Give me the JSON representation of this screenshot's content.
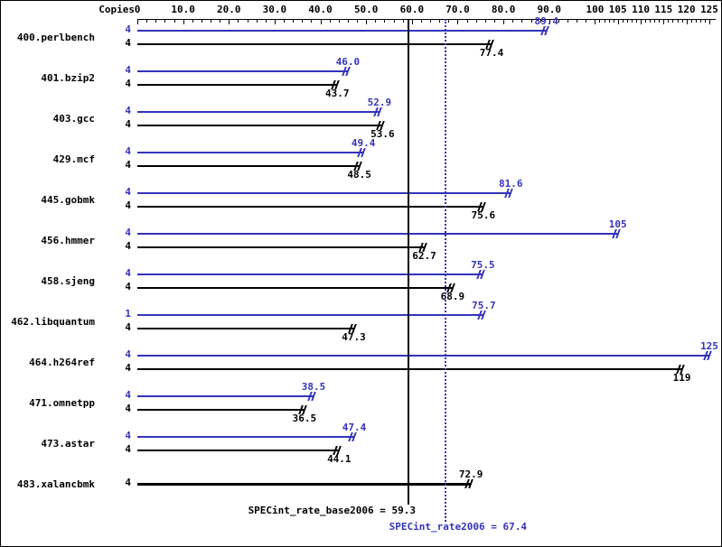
{
  "chart_data": {
    "type": "bar",
    "orientation": "horizontal",
    "copies_header": "Copies",
    "x_axis": {
      "range": [
        0,
        125
      ],
      "grid": false,
      "ticks": [
        {
          "value": 0,
          "label": "0"
        },
        {
          "value": 10,
          "label": "10.0"
        },
        {
          "value": 20,
          "label": "20.0"
        },
        {
          "value": 30,
          "label": "30.0"
        },
        {
          "value": 40,
          "label": "40.0"
        },
        {
          "value": 50,
          "label": "50.0"
        },
        {
          "value": 60,
          "label": "60.0"
        },
        {
          "value": 70,
          "label": "70.0"
        },
        {
          "value": 80,
          "label": "80.0"
        },
        {
          "value": 90,
          "label": "90.0"
        },
        {
          "value": 100,
          "label": "100"
        },
        {
          "value": 105,
          "label": "105"
        },
        {
          "value": 110,
          "label": "110"
        },
        {
          "value": 115,
          "label": "115"
        },
        {
          "value": 120,
          "label": "120"
        },
        {
          "value": 125,
          "label": "125"
        }
      ]
    },
    "series": [
      {
        "name": "peak",
        "color": "#3333bb"
      },
      {
        "name": "base",
        "color": "#000000"
      }
    ],
    "benchmarks": [
      {
        "name": "400.perlbench",
        "bars": [
          {
            "series": "peak",
            "copies": "4",
            "value": 89.4,
            "label": "89.4"
          },
          {
            "series": "base",
            "copies": "4",
            "value": 77.4,
            "label": "77.4"
          }
        ]
      },
      {
        "name": "401.bzip2",
        "bars": [
          {
            "series": "peak",
            "copies": "4",
            "value": 46.0,
            "label": "46.0"
          },
          {
            "series": "base",
            "copies": "4",
            "value": 43.7,
            "label": "43.7"
          }
        ]
      },
      {
        "name": "403.gcc",
        "bars": [
          {
            "series": "peak",
            "copies": "4",
            "value": 52.9,
            "label": "52.9"
          },
          {
            "series": "base",
            "copies": "4",
            "value": 53.6,
            "label": "53.6"
          }
        ]
      },
      {
        "name": "429.mcf",
        "bars": [
          {
            "series": "peak",
            "copies": "4",
            "value": 49.4,
            "label": "49.4"
          },
          {
            "series": "base",
            "copies": "4",
            "value": 48.5,
            "label": "48.5"
          }
        ]
      },
      {
        "name": "445.gobmk",
        "bars": [
          {
            "series": "peak",
            "copies": "4",
            "value": 81.6,
            "label": "81.6"
          },
          {
            "series": "base",
            "copies": "4",
            "value": 75.6,
            "label": "75.6"
          }
        ]
      },
      {
        "name": "456.hmmer",
        "bars": [
          {
            "series": "peak",
            "copies": "4",
            "value": 105,
            "label": "105"
          },
          {
            "series": "base",
            "copies": "4",
            "value": 62.7,
            "label": "62.7"
          }
        ]
      },
      {
        "name": "458.sjeng",
        "bars": [
          {
            "series": "peak",
            "copies": "4",
            "value": 75.5,
            "label": "75.5"
          },
          {
            "series": "base",
            "copies": "4",
            "value": 68.9,
            "label": "68.9"
          }
        ]
      },
      {
        "name": "462.libquantum",
        "bars": [
          {
            "series": "peak",
            "copies": "1",
            "value": 75.7,
            "label": "75.7"
          },
          {
            "series": "base",
            "copies": "4",
            "value": 47.3,
            "label": "47.3"
          }
        ]
      },
      {
        "name": "464.h264ref",
        "bars": [
          {
            "series": "peak",
            "copies": "4",
            "value": 125,
            "label": "125"
          },
          {
            "series": "base",
            "copies": "4",
            "value": 119,
            "label": "119"
          }
        ]
      },
      {
        "name": "471.omnetpp",
        "bars": [
          {
            "series": "peak",
            "copies": "4",
            "value": 38.5,
            "label": "38.5"
          },
          {
            "series": "base",
            "copies": "4",
            "value": 36.5,
            "label": "36.5"
          }
        ]
      },
      {
        "name": "473.astar",
        "bars": [
          {
            "series": "peak",
            "copies": "4",
            "value": 47.4,
            "label": "47.4"
          },
          {
            "series": "base",
            "copies": "4",
            "value": 44.1,
            "label": "44.1"
          }
        ]
      },
      {
        "name": "483.xalancbmk",
        "bars": [
          {
            "series": "base",
            "copies": "4",
            "value": 72.9,
            "label": "72.9"
          }
        ]
      }
    ],
    "reference_lines": [
      {
        "name": "base-mean",
        "label": "SPECint_rate_base2006 = 59.3",
        "value": 59.3,
        "style": "solid",
        "color": "#000000"
      },
      {
        "name": "peak-mean",
        "label": "SPECint_rate2006 = 67.4",
        "value": 67.4,
        "style": "dotted",
        "color": "#3333bb"
      }
    ]
  }
}
